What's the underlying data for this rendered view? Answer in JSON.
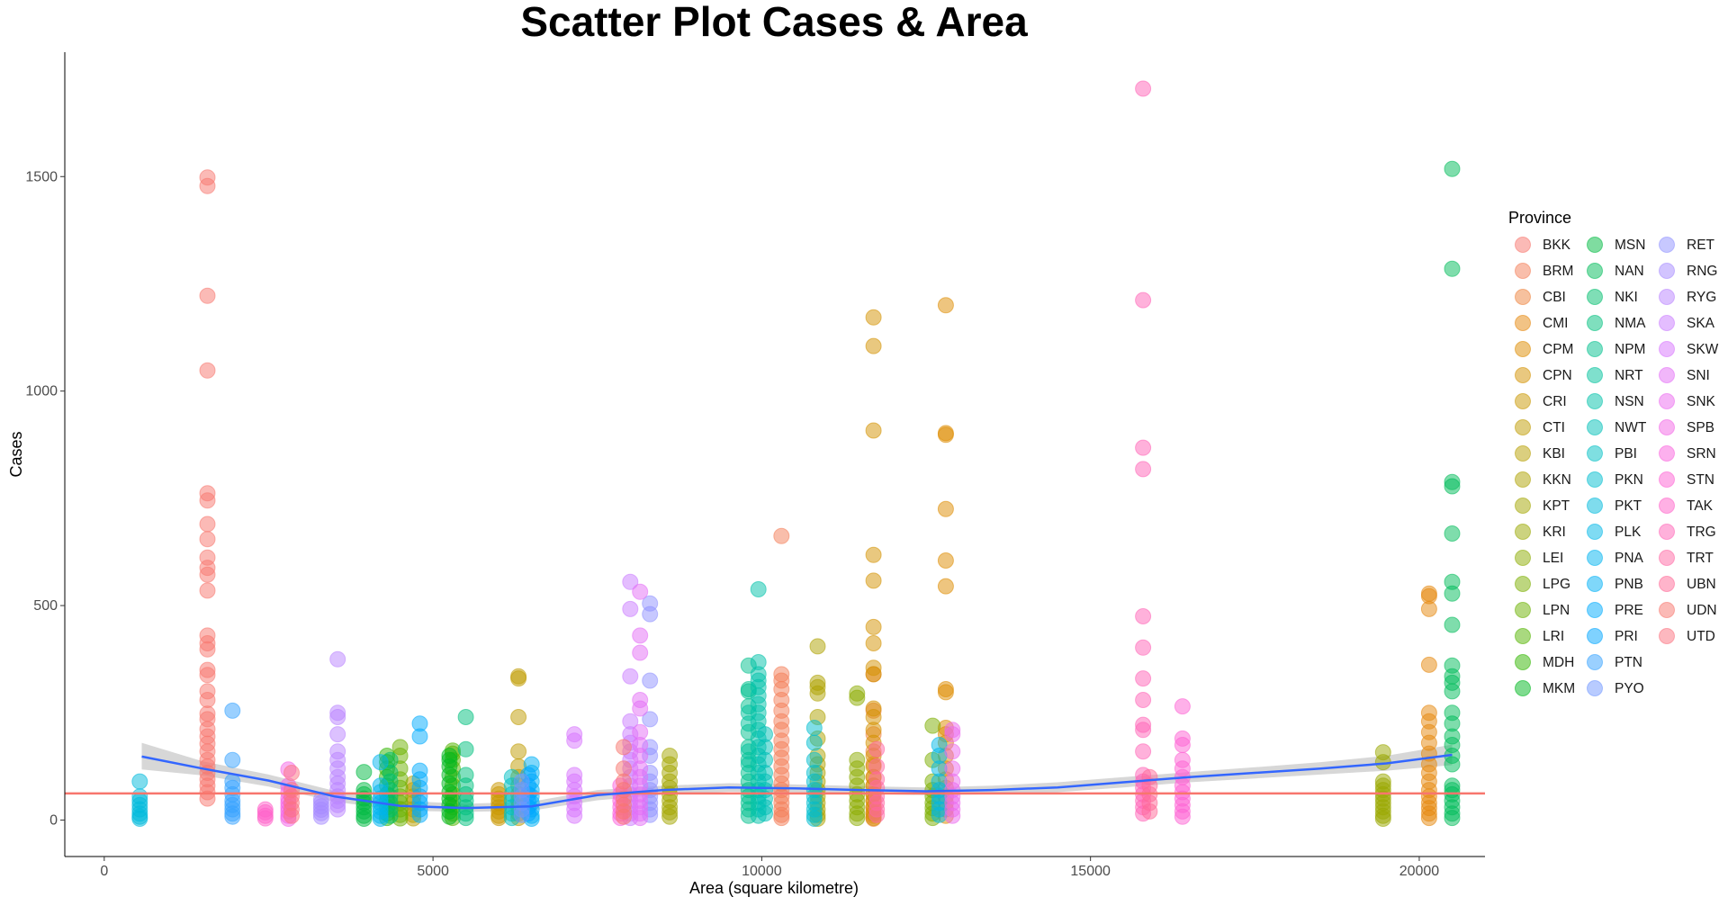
{
  "chart_data": {
    "type": "scatter",
    "title": "Scatter Plot Cases & Area",
    "xlabel": "Area (square kilometre)",
    "ylabel": "Cases",
    "xlim": [
      -600,
      21000
    ],
    "ylim": [
      -85,
      1790
    ],
    "xticks": [
      0,
      5000,
      10000,
      15000,
      20000
    ],
    "yticks": [
      0,
      500,
      1000,
      1500
    ],
    "grid": false,
    "legend_title": "Province",
    "legend_position": "right",
    "reference_line": {
      "y": 62,
      "color": "#f8766d"
    },
    "smooth": {
      "color": "#3366ff",
      "band_color": "#bdbdbd",
      "points": [
        {
          "x": 570,
          "y": 148,
          "lo": 118,
          "hi": 180
        },
        {
          "x": 1500,
          "y": 120,
          "lo": 104,
          "hi": 137
        },
        {
          "x": 2500,
          "y": 92,
          "lo": 78,
          "hi": 106
        },
        {
          "x": 3500,
          "y": 55,
          "lo": 43,
          "hi": 68
        },
        {
          "x": 4500,
          "y": 33,
          "lo": 22,
          "hi": 45
        },
        {
          "x": 5500,
          "y": 28,
          "lo": 19,
          "hi": 38
        },
        {
          "x": 6500,
          "y": 32,
          "lo": 22,
          "hi": 43
        },
        {
          "x": 7500,
          "y": 58,
          "lo": 46,
          "hi": 70
        },
        {
          "x": 8500,
          "y": 70,
          "lo": 59,
          "hi": 80
        },
        {
          "x": 9500,
          "y": 76,
          "lo": 66,
          "hi": 86
        },
        {
          "x": 10500,
          "y": 74,
          "lo": 65,
          "hi": 83
        },
        {
          "x": 11500,
          "y": 70,
          "lo": 61,
          "hi": 79
        },
        {
          "x": 12500,
          "y": 67,
          "lo": 58,
          "hi": 76
        },
        {
          "x": 13500,
          "y": 70,
          "lo": 60,
          "hi": 80
        },
        {
          "x": 14500,
          "y": 76,
          "lo": 65,
          "hi": 88
        },
        {
          "x": 15500,
          "y": 88,
          "lo": 76,
          "hi": 100
        },
        {
          "x": 16500,
          "y": 100,
          "lo": 88,
          "hi": 112
        },
        {
          "x": 17500,
          "y": 110,
          "lo": 97,
          "hi": 123
        },
        {
          "x": 18500,
          "y": 120,
          "lo": 106,
          "hi": 135
        },
        {
          "x": 19500,
          "y": 132,
          "lo": 115,
          "hi": 150
        },
        {
          "x": 20500,
          "y": 152,
          "lo": 128,
          "hi": 176
        }
      ]
    },
    "series": [
      {
        "name": "BKK",
        "color": "#F8766D",
        "x": 1570,
        "y": [
          1498,
          1478,
          1222,
          1048,
          762,
          745,
          690,
          655,
          612,
          588,
          572,
          535,
          430,
          412,
          398,
          350,
          338,
          300,
          280,
          248,
          235,
          212,
          195,
          178,
          160,
          140,
          125,
          110,
          95,
          80,
          65,
          50
        ]
      },
      {
        "name": "BRM",
        "color": "#F47D57",
        "x": 10300,
        "y": [
          662,
          340,
          325,
          305,
          280,
          255,
          230,
          210,
          185,
          165,
          145,
          125,
          105,
          85,
          70,
          55,
          40,
          25,
          12,
          5
        ]
      },
      {
        "name": "CBI",
        "color": "#EE833E",
        "x": 11700,
        "y": [
          340,
          255,
          200,
          160,
          130,
          100,
          80,
          60,
          45,
          30,
          20,
          10,
          3
        ]
      },
      {
        "name": "CMI",
        "color": "#E5870C",
        "x": 20150,
        "y": [
          528,
          522,
          492,
          362,
          250,
          230,
          205,
          180,
          155,
          130,
          110,
          90,
          70,
          55,
          40,
          28,
          15,
          5
        ]
      },
      {
        "name": "CPM",
        "color": "#DE8C00",
        "x": 12800,
        "y": [
          1200,
          902,
          898,
          725,
          605,
          545,
          305,
          298,
          215,
          200,
          180,
          150,
          120,
          95,
          75,
          55,
          40,
          25,
          10
        ]
      },
      {
        "name": "CPN",
        "color": "#D39200",
        "x": 11700,
        "y": [
          1172,
          1105,
          908,
          618,
          558,
          450,
          412,
          355,
          340,
          260,
          240,
          210,
          180,
          150,
          125,
          100,
          80,
          60,
          45,
          30,
          15,
          5
        ]
      },
      {
        "name": "CRI",
        "color": "#C99800",
        "x": 6000,
        "y": [
          70,
          60,
          50,
          40,
          30,
          20,
          10,
          5
        ]
      },
      {
        "name": "CTI",
        "color": "#C09B00",
        "x": 6300,
        "y": [
          335,
          330,
          240,
          160,
          125,
          100,
          80,
          60,
          45,
          30,
          15,
          5
        ]
      },
      {
        "name": "KBI",
        "color": "#B79F00",
        "x": 4700,
        "y": [
          85,
          70,
          55,
          40,
          25,
          12,
          4
        ]
      },
      {
        "name": "KKN",
        "color": "#AEA200",
        "x": 10850,
        "y": [
          405,
          320,
          310,
          295,
          240,
          190,
          150,
          130,
          110,
          90,
          70,
          55,
          40,
          25,
          12,
          3
        ]
      },
      {
        "name": "KPT",
        "color": "#A3A500",
        "x": 8600,
        "y": [
          150,
          130,
          110,
          90,
          75,
          60,
          45,
          30,
          18,
          8
        ]
      },
      {
        "name": "KRI",
        "color": "#99A800",
        "x": 19450,
        "y": [
          158,
          135,
          90,
          80,
          70,
          60,
          50,
          40,
          30,
          20,
          10,
          3
        ]
      },
      {
        "name": "LEI",
        "color": "#8CAB00",
        "x": 11450,
        "y": [
          295,
          285,
          140,
          120,
          100,
          80,
          60,
          45,
          30,
          15,
          5
        ]
      },
      {
        "name": "LPG",
        "color": "#7CAE00",
        "x": 12600,
        "y": [
          220,
          140,
          90,
          70,
          55,
          40,
          28,
          15,
          5
        ]
      },
      {
        "name": "LPN",
        "color": "#6BB100",
        "x": 4500,
        "y": [
          170,
          150,
          120,
          95,
          75,
          55,
          40,
          25,
          12,
          4
        ]
      },
      {
        "name": "LRI",
        "color": "#53B400",
        "x": 5300,
        "y": [
          162,
          155,
          140,
          120,
          100,
          80,
          60,
          45,
          30,
          15,
          5
        ]
      },
      {
        "name": "MDH",
        "color": "#31B600",
        "x": 4300,
        "y": [
          150,
          135,
          120,
          100,
          80,
          60,
          45,
          30,
          15,
          5
        ]
      },
      {
        "name": "MKM",
        "color": "#00B81F",
        "x": 5250,
        "y": [
          150,
          140,
          125,
          105,
          85,
          65,
          50,
          35,
          20,
          8
        ]
      },
      {
        "name": "MSN",
        "color": "#00BA42",
        "x": 3950,
        "y": [
          112,
          70,
          60,
          50,
          40,
          30,
          20,
          10,
          3
        ]
      },
      {
        "name": "NAN",
        "color": "#00BC59",
        "x": 20500,
        "y": [
          1518,
          1285,
          788,
          778,
          668,
          555,
          528,
          455,
          360,
          335,
          320,
          300,
          250,
          225,
          195,
          175,
          150,
          130,
          80,
          70,
          60,
          45,
          30,
          15,
          5
        ]
      },
      {
        "name": "NKI",
        "color": "#00BD6D",
        "x": 4350,
        "y": [
          140,
          110,
          90,
          70,
          55,
          40,
          25,
          10
        ]
      },
      {
        "name": "NMA",
        "color": "#00BF7D",
        "x": 5500,
        "y": [
          240,
          165,
          105,
          80,
          60,
          45,
          30,
          15,
          5
        ]
      },
      {
        "name": "NPM",
        "color": "#00C08D",
        "x": 9800,
        "y": [
          360,
          305,
          300,
          265,
          205,
          170,
          140,
          110,
          90,
          70,
          55,
          40,
          25,
          10
        ]
      },
      {
        "name": "NRT",
        "color": "#00C19C",
        "x": 9800,
        "y": [
          250,
          225,
          160,
          130
        ]
      },
      {
        "name": "NSN",
        "color": "#00C1AA",
        "x": 9950,
        "y": [
          538,
          368,
          340,
          325,
          310,
          290,
          270,
          250,
          230,
          210,
          190,
          170,
          150,
          130,
          110,
          90,
          70,
          55,
          40,
          25,
          10
        ]
      },
      {
        "name": "NWT",
        "color": "#00C0B8",
        "x": 10050,
        "y": [
          200,
          170,
          140,
          110,
          90,
          70,
          50,
          30,
          15
        ]
      },
      {
        "name": "PBI",
        "color": "#00BFC4",
        "x": 6200,
        "y": [
          100,
          80,
          60,
          45,
          30,
          15,
          5
        ]
      },
      {
        "name": "PKN",
        "color": "#00BDD0",
        "x": 10800,
        "y": [
          215,
          180,
          140,
          110,
          90,
          70,
          55,
          40,
          25,
          12,
          3
        ]
      },
      {
        "name": "PKT",
        "color": "#00BADC",
        "x": 540,
        "y": [
          90,
          55,
          45,
          35,
          25,
          15,
          8,
          3
        ]
      },
      {
        "name": "PLK",
        "color": "#00B7E7",
        "x": 12700,
        "y": [
          175,
          150,
          120,
          90,
          70,
          55,
          40,
          25,
          12
        ]
      },
      {
        "name": "PNA",
        "color": "#00B4F0",
        "x": 4200,
        "y": [
          135,
          80,
          65,
          50,
          40,
          30,
          20,
          10,
          3
        ]
      },
      {
        "name": "PNB",
        "color": "#00B0F6",
        "x": 6500,
        "y": [
          130,
          110,
          90,
          70,
          55,
          40,
          25,
          10,
          3
        ]
      },
      {
        "name": "PRE",
        "color": "#00ABFD",
        "x": 4800,
        "y": [
          225,
          195,
          115,
          95,
          75,
          55,
          40,
          25,
          12
        ]
      },
      {
        "name": "PRI",
        "color": "#00A5FF",
        "x": 6450,
        "y": [
          105,
          80,
          60,
          45,
          30,
          15
        ]
      },
      {
        "name": "PTN",
        "color": "#35A2FF",
        "x": 1950,
        "y": [
          255,
          140,
          90,
          75,
          60,
          45,
          35,
          25,
          15,
          8
        ]
      },
      {
        "name": "PYO",
        "color": "#7197FF",
        "x": 6350,
        "y": [
          90,
          70,
          55,
          40,
          25,
          12
        ]
      },
      {
        "name": "RET",
        "color": "#8F91FF",
        "x": 8300,
        "y": [
          505,
          480,
          325,
          235,
          170,
          150,
          110,
          90,
          70,
          55,
          40,
          25,
          12
        ]
      },
      {
        "name": "RNG",
        "color": "#A58AFF",
        "x": 3300,
        "y": [
          48,
          40,
          32,
          24,
          16,
          8
        ]
      },
      {
        "name": "RYG",
        "color": "#B983FF",
        "x": 3550,
        "y": [
          375,
          250,
          240,
          200,
          160,
          140,
          120,
          100,
          85,
          70,
          55,
          45,
          35,
          25
        ]
      },
      {
        "name": "SKA",
        "color": "#CA7BFF",
        "x": 8000,
        "y": [
          555,
          492,
          335,
          230,
          200,
          180,
          160,
          140,
          120,
          100,
          80,
          60,
          45,
          30,
          15,
          5
        ]
      },
      {
        "name": "SKW",
        "color": "#D774FD",
        "x": 7150,
        "y": [
          200,
          185,
          105,
          90,
          70,
          55,
          40,
          25,
          10
        ]
      },
      {
        "name": "SNI",
        "color": "#E36EF6",
        "x": 8150,
        "y": [
          532,
          430,
          390,
          280,
          260,
          205,
          175,
          150,
          120,
          100,
          80,
          60,
          45,
          30,
          15,
          5
        ]
      },
      {
        "name": "SNK",
        "color": "#EB69EF",
        "x": 12900,
        "y": [
          210,
          200,
          160,
          120,
          90,
          70,
          55,
          40,
          25,
          10
        ]
      },
      {
        "name": "SPB",
        "color": "#F365E6",
        "x": 2800,
        "y": [
          118,
          80,
          65,
          50,
          40,
          30,
          20,
          10,
          3
        ]
      },
      {
        "name": "SRN",
        "color": "#F962DD",
        "x": 7850,
        "y": [
          80,
          60,
          45,
          30,
          15,
          5
        ]
      },
      {
        "name": "STN",
        "color": "#FD61D3",
        "x": 16400,
        "y": [
          265,
          190,
          175,
          140,
          120,
          100,
          80,
          65,
          50,
          35,
          20,
          8
        ]
      },
      {
        "name": "TAK",
        "color": "#FF61C9",
        "x": 2450,
        "y": [
          25,
          18,
          10,
          4
        ]
      },
      {
        "name": "TRG",
        "color": "#FF64B7",
        "x": 15800,
        "y": [
          1705,
          1212,
          868,
          818,
          475,
          402,
          330,
          280,
          222,
          210,
          160,
          105,
          90,
          75,
          60,
          45,
          30,
          15
        ]
      },
      {
        "name": "TRT",
        "color": "#FF67A4",
        "x": 11750,
        "y": [
          165,
          125,
          95,
          75,
          55,
          40,
          25,
          12
        ]
      },
      {
        "name": "UBN",
        "color": "#FF6A98",
        "x": 15900,
        "y": [
          100,
          80,
          60,
          40,
          20
        ]
      },
      {
        "name": "UDN",
        "color": "#F8766D",
        "x": 7900,
        "y": [
          170,
          120,
          90,
          70,
          50,
          35,
          20,
          8
        ]
      },
      {
        "name": "UTD",
        "color": "#FB7280",
        "x": 2850,
        "y": [
          110,
          70,
          55,
          40,
          25,
          10
        ]
      }
    ]
  }
}
